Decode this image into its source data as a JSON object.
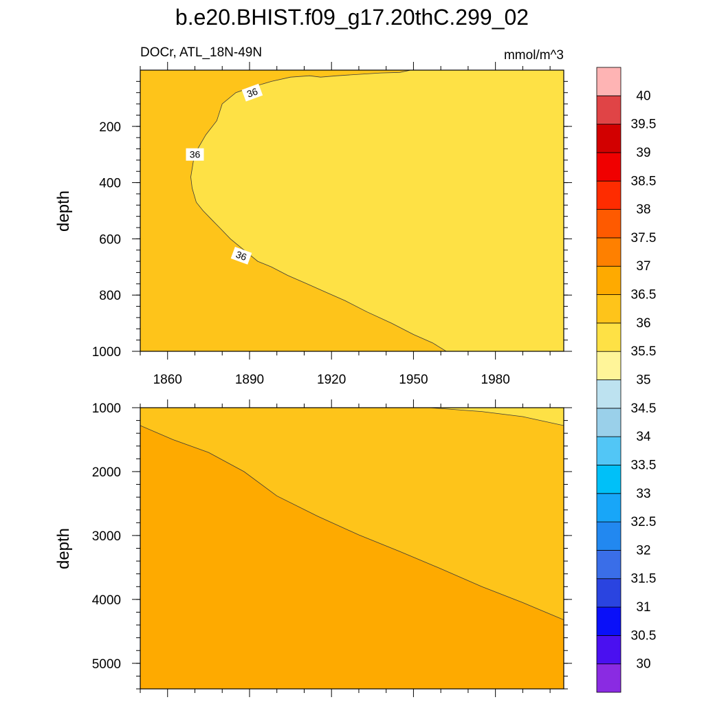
{
  "chart_data": [
    {
      "type": "heatmap",
      "figure_title": "b.e20.BHIST.f09_g17.20thC.299_02",
      "left_subtitle": "DOCr, ATL_18N-49N",
      "right_subtitle": "mmol/m^3",
      "ylabel": "depth",
      "xlim": [
        1850,
        2005
      ],
      "ylim": [
        0,
        1000
      ],
      "y_inverted": true,
      "xticks": [
        1860,
        1890,
        1920,
        1950,
        1980
      ],
      "yticks": [
        200,
        400,
        600,
        800,
        1000
      ],
      "background_color": "#fec41a",
      "regions": [
        {
          "color": "#fee145",
          "label": "35.5-36",
          "boundary": [
            [
              1949,
              0
            ],
            [
              1945,
              8
            ],
            [
              1938,
              10
            ],
            [
              1930,
              15
            ],
            [
              1922,
              20
            ],
            [
              1916,
              25
            ],
            [
              1912,
              20
            ],
            [
              1905,
              25
            ],
            [
              1898,
              40
            ],
            [
              1891,
              60
            ],
            [
              1885,
              80
            ],
            [
              1880,
              120
            ],
            [
              1878,
              180
            ],
            [
              1874,
              230
            ],
            [
              1871,
              280
            ],
            [
              1869.5,
              320
            ],
            [
              1868.5,
              380
            ],
            [
              1869,
              420
            ],
            [
              1870.5,
              470
            ],
            [
              1873,
              500
            ],
            [
              1876,
              530
            ],
            [
              1879,
              560
            ],
            [
              1883,
              600
            ],
            [
              1888,
              640
            ],
            [
              1893,
              680
            ],
            [
              1898,
              700
            ],
            [
              1904,
              730
            ],
            [
              1911,
              760
            ],
            [
              1918,
              790
            ],
            [
              1925,
              820
            ],
            [
              1933,
              860
            ],
            [
              1942,
              900
            ],
            [
              1950,
              940
            ],
            [
              1957,
              970
            ],
            [
              1962,
              1000
            ],
            [
              2005,
              1000
            ],
            [
              2005,
              0
            ]
          ]
        }
      ],
      "contour_labels": [
        "36",
        "36",
        "36"
      ]
    },
    {
      "type": "heatmap",
      "ylabel": "depth",
      "xlim": [
        1850,
        2005
      ],
      "ylim": [
        1000,
        5400
      ],
      "y_inverted": true,
      "yticks": [
        1000,
        2000,
        3000,
        4000,
        5000
      ],
      "background_color": "#feaa00",
      "regions": [
        {
          "color": "#fec41a",
          "label": "36-36.5",
          "boundary": [
            [
              1850,
              1000
            ],
            [
              2005,
              1000
            ],
            [
              2005,
              4320
            ],
            [
              1990,
              4050
            ],
            [
              1975,
              3800
            ],
            [
              1960,
              3520
            ],
            [
              1945,
              3250
            ],
            [
              1930,
              2990
            ],
            [
              1915,
              2700
            ],
            [
              1900,
              2380
            ],
            [
              1888,
              2000
            ],
            [
              1875,
              1700
            ],
            [
              1862,
              1500
            ],
            [
              1850,
              1280
            ]
          ]
        },
        {
          "color": "#fee145",
          "label": "35.5-36",
          "boundary": [
            [
              1956,
              1000
            ],
            [
              2005,
              1000
            ],
            [
              2005,
              1280
            ],
            [
              1990,
              1140
            ],
            [
              1975,
              1060
            ]
          ]
        }
      ]
    }
  ],
  "colorbar": {
    "labels": [
      "30",
      "30.5",
      "31",
      "31.5",
      "32",
      "32.5",
      "33",
      "33.5",
      "34",
      "34.5",
      "35",
      "35.5",
      "36",
      "36.5",
      "37",
      "37.5",
      "38",
      "38.5",
      "39",
      "39.5",
      "40"
    ],
    "colors": [
      "#8a2be2",
      "#4a10f0",
      "#0a10f8",
      "#2a44e0",
      "#3a6ee8",
      "#2288f0",
      "#18a6f8",
      "#00c0f8",
      "#52c6f6",
      "#9ad0ea",
      "#bde2f0",
      "#fff599",
      "#fee145",
      "#fec41a",
      "#feaa00",
      "#fe8000",
      "#fe5a00",
      "#fe2c00",
      "#f00000",
      "#d20000",
      "#e04446",
      "#feb4b4"
    ]
  }
}
